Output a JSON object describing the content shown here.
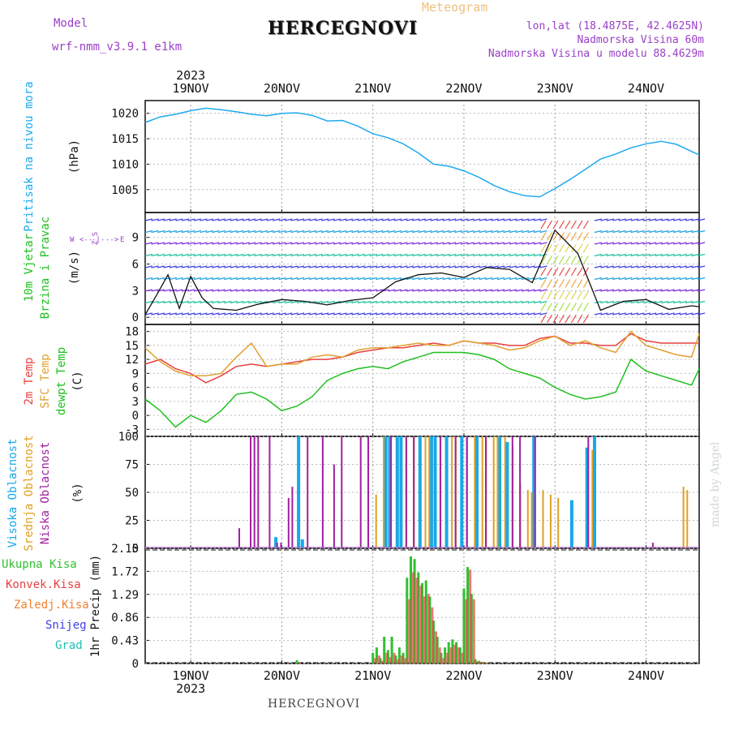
{
  "header": {
    "title": "HERCEGNOVI",
    "subtitle": "Meteogram",
    "model_label": "Model",
    "model_value": "wrf-nmm_v3.9.1  e1km",
    "location_lines": [
      "lon,lat (18.4875E, 42.4625N)",
      "Nadmorska Visina 60m",
      "Nadmorska Visina u modelu 88.4629m"
    ]
  },
  "footer": "HERCEGNOVI",
  "watermark": "made by Angel",
  "time_axis": {
    "year": "2023",
    "ticks": [
      "19NOV",
      "20NOV",
      "21NOV",
      "22NOV",
      "23NOV",
      "24NOV"
    ]
  },
  "colors": {
    "pressure": "#1eaaf0",
    "t2m": "#e84040",
    "sfc": "#e0a030",
    "dew": "#20c020",
    "high_cloud": "#18a8e8",
    "mid_cloud": "#e0a020",
    "low_cloud": "#a020a0",
    "precip_total": "#30c030",
    "precip_conv": "#e84040",
    "precip_frz": "#f08030",
    "snow": "#4040e0",
    "hail": "#20c0b0",
    "wind_obs": "#e83030"
  },
  "chart_data": [
    {
      "type": "line",
      "panel": "pressure",
      "ylabel": [
        "Pritisak na nivou mora",
        "(hPa)"
      ],
      "yticks": [
        "1005",
        "1010",
        "1015",
        "1020"
      ],
      "ylim": [
        1000.5,
        1022.5
      ],
      "x_hours": [
        0,
        4,
        8,
        12,
        16,
        20,
        24,
        28,
        32,
        36,
        40,
        44,
        48,
        52,
        56,
        60,
        64,
        68,
        72,
        76,
        80,
        84,
        88,
        92,
        96,
        100,
        104,
        108,
        112,
        116,
        120,
        124,
        128,
        132,
        136,
        140,
        144,
        146
      ],
      "series": [
        {
          "values": [
            1018.2,
            1019.3,
            1019.8,
            1020.5,
            1021.0,
            1020.7,
            1020.3,
            1019.8,
            1019.5,
            1020.0,
            1020.1,
            1019.6,
            1018.5,
            1018.6,
            1017.5,
            1016.0,
            1015.2,
            1014.0,
            1012.2,
            1010.0,
            1009.6,
            1008.7,
            1007.4,
            1005.8,
            1004.6,
            1003.8,
            1003.6,
            1005.2,
            1007.0,
            1009.0,
            1011.0,
            1012.0,
            1013.2,
            1014.0,
            1014.5,
            1013.9,
            1012.5,
            1011.8
          ]
        }
      ]
    },
    {
      "type": "line",
      "panel": "wind",
      "ylabel": [
        "10m Vjetar",
        "Brzina i Pravac",
        "(m/s)"
      ],
      "compass": [
        "W",
        "<--",
        "-|-",
        "-->",
        "E",
        "Z",
        "S"
      ],
      "yticks": [
        "0",
        "3",
        "6",
        "9"
      ],
      "ylim": [
        -0.8,
        11.8
      ],
      "x_hours": [
        0,
        3,
        6,
        9,
        12,
        15,
        18,
        24,
        30,
        36,
        42,
        48,
        54,
        60,
        66,
        72,
        78,
        84,
        90,
        96,
        102,
        108,
        114,
        120,
        126,
        132,
        138,
        144,
        146
      ],
      "series": [
        {
          "name": "speed",
          "values": [
            0.3,
            2.5,
            4.8,
            1.0,
            4.6,
            2.2,
            1.0,
            0.8,
            1.5,
            2.0,
            1.8,
            1.4,
            1.9,
            2.2,
            4.0,
            4.8,
            5.0,
            4.5,
            5.6,
            5.4,
            3.9,
            9.8,
            7.2,
            0.8,
            1.8,
            2.0,
            0.9,
            1.3,
            1.2
          ]
        }
      ]
    },
    {
      "type": "line",
      "panel": "temperature",
      "ylabel": [
        "2m Temp",
        "SFC Temp",
        "dewpt Temp",
        "(C)"
      ],
      "yticks": [
        "-3",
        "0",
        "3",
        "6",
        "9",
        "12",
        "15",
        "18"
      ],
      "ylim": [
        -4.5,
        19.5
      ],
      "x_hours": [
        0,
        4,
        8,
        12,
        16,
        20,
        24,
        28,
        32,
        36,
        40,
        44,
        48,
        52,
        56,
        60,
        64,
        68,
        72,
        76,
        80,
        84,
        88,
        92,
        96,
        100,
        104,
        108,
        112,
        116,
        120,
        124,
        128,
        132,
        136,
        140,
        144,
        146
      ],
      "series": [
        {
          "name": "2m Temp",
          "values": [
            11.0,
            12.0,
            10.0,
            9.0,
            7.0,
            8.5,
            10.5,
            11.0,
            10.5,
            11.0,
            11.5,
            12.0,
            12.0,
            12.5,
            13.5,
            14.0,
            14.5,
            14.5,
            15.0,
            15.5,
            15.0,
            16.0,
            15.5,
            15.5,
            15.0,
            15.0,
            16.5,
            17.0,
            15.5,
            15.5,
            15.0,
            15.0,
            17.5,
            16.0,
            15.5,
            15.5,
            15.5,
            15.5
          ]
        },
        {
          "name": "SFC Temp",
          "values": [
            14.5,
            11.5,
            9.5,
            8.5,
            8.5,
            9.0,
            12.5,
            15.5,
            10.5,
            11.0,
            11.0,
            12.5,
            13.0,
            12.5,
            14.0,
            14.5,
            14.5,
            15.0,
            15.5,
            15.0,
            15.0,
            16.0,
            15.5,
            15.0,
            14.0,
            14.5,
            16.0,
            17.0,
            15.0,
            16.0,
            14.5,
            13.5,
            18.0,
            15.0,
            14.0,
            13.0,
            12.5,
            17.5
          ]
        },
        {
          "name": "dewpt Temp",
          "values": [
            3.5,
            1.0,
            -2.5,
            0.0,
            -1.5,
            1.0,
            4.5,
            5.0,
            3.5,
            1.0,
            2.0,
            4.0,
            7.5,
            9.0,
            10.0,
            10.5,
            10.0,
            11.5,
            12.5,
            13.5,
            13.5,
            13.5,
            13.0,
            12.0,
            10.0,
            9.0,
            8.0,
            6.0,
            4.5,
            3.5,
            4.0,
            5.0,
            12.0,
            9.5,
            8.5,
            7.5,
            6.5,
            10.0
          ]
        }
      ]
    },
    {
      "type": "bar",
      "panel": "cloud",
      "ylabel": [
        "Visoka Oblacnost",
        "Srednja Oblacnost",
        "Niska Oblacnost",
        "(%)"
      ],
      "yticks": [
        "0",
        "25",
        "50",
        "75",
        "100"
      ],
      "ylim": [
        0,
        100
      ],
      "series": [
        {
          "name": "Visoka Oblacnost",
          "x_hours": [
            34,
            40,
            41,
            63,
            64,
            66,
            67,
            72,
            75,
            76,
            79,
            83,
            87,
            93,
            95,
            102,
            112,
            116,
            118
          ],
          "values": [
            10,
            100,
            8,
            100,
            100,
            100,
            100,
            100,
            100,
            100,
            100,
            100,
            100,
            100,
            95,
            100,
            43,
            90,
            100
          ]
        },
        {
          "name": "Srednja Oblacnost",
          "x_hours": [
            60,
            62,
            68,
            70,
            73,
            74,
            77,
            80,
            81,
            84,
            86,
            88,
            89,
            91,
            92,
            94,
            96,
            98,
            100,
            101,
            104,
            106,
            108,
            117,
            141,
            142
          ],
          "values": [
            48,
            100,
            100,
            100,
            100,
            100,
            100,
            100,
            100,
            100,
            100,
            100,
            100,
            100,
            100,
            100,
            92,
            58,
            52,
            50,
            52,
            48,
            45,
            88,
            55,
            52
          ]
        },
        {
          "name": "Niska Oblacnost",
          "x_hours": [
            25,
            28,
            29,
            30,
            33,
            35,
            36,
            38,
            39,
            43,
            47,
            50,
            52,
            57,
            59,
            65,
            69,
            71,
            78,
            82,
            85,
            90,
            97,
            99,
            103,
            117,
            134
          ],
          "values": [
            18,
            100,
            100,
            100,
            100,
            5,
            5,
            45,
            55,
            100,
            100,
            75,
            100,
            100,
            100,
            100,
            100,
            100,
            100,
            100,
            100,
            100,
            100,
            100,
            100,
            100,
            5
          ]
        }
      ]
    },
    {
      "type": "bar",
      "panel": "precip",
      "ylabel": [
        "1hr Precip (mm)"
      ],
      "legend": [
        "Ukupna Kisa",
        "Konvek.Kisa",
        "Zaledj.Kisa",
        "Snijeg",
        "Grad"
      ],
      "yticks": [
        "0",
        "0.43",
        "0.86",
        "1.29",
        "1.72",
        "2.15"
      ],
      "ylim": [
        0,
        2.15
      ],
      "x_hours": [
        40,
        60,
        61,
        62,
        63,
        64,
        65,
        66,
        67,
        68,
        69,
        70,
        71,
        72,
        73,
        74,
        75,
        76,
        77,
        78,
        79,
        80,
        81,
        82,
        83,
        84,
        85,
        86,
        87,
        88,
        89,
        90
      ],
      "series": [
        {
          "name": "Ukupna Kisa",
          "values": [
            0.06,
            0.2,
            0.3,
            0.1,
            0.5,
            0.25,
            0.5,
            0.15,
            0.3,
            0.2,
            1.6,
            2.0,
            1.95,
            1.7,
            1.5,
            1.55,
            1.25,
            0.8,
            0.5,
            0.2,
            0.3,
            0.4,
            0.45,
            0.4,
            0.3,
            1.4,
            1.8,
            1.3,
            0.08,
            0.05,
            0.03,
            0.02
          ]
        },
        {
          "name": "Konvek.Kisa",
          "values": [
            0.02,
            0.1,
            0.15,
            0.05,
            0.2,
            0.12,
            0.2,
            0.08,
            0.15,
            0.1,
            1.2,
            1.7,
            1.6,
            1.45,
            1.25,
            1.3,
            1.05,
            0.6,
            0.3,
            0.1,
            0.2,
            0.3,
            0.35,
            0.3,
            0.2,
            1.2,
            1.75,
            1.2,
            0.04,
            0.03,
            0.02,
            0.01
          ]
        }
      ]
    }
  ]
}
